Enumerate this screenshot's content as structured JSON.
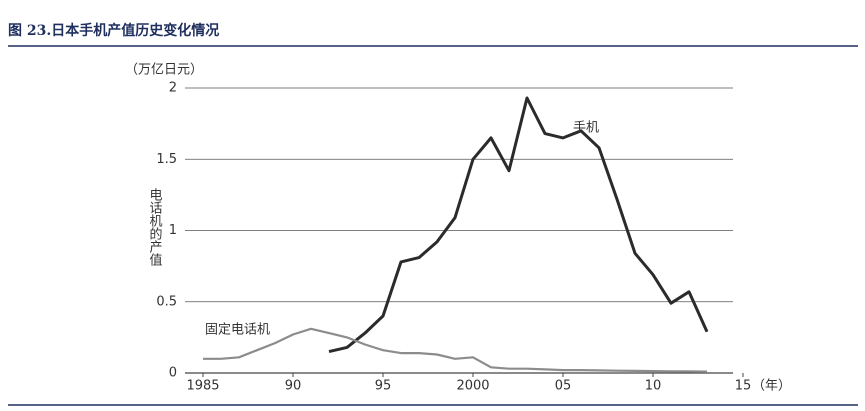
{
  "chart_data": {
    "type": "line",
    "title": "图 23.日本手机产值历史变化情况",
    "y_unit": "（万亿日元）",
    "y_axis_label": "电话机的产值",
    "x_unit": "（年）",
    "x": [
      1985,
      1986,
      1987,
      1988,
      1989,
      1990,
      1991,
      1992,
      1993,
      1994,
      1995,
      1996,
      1997,
      1998,
      1999,
      2000,
      2001,
      2002,
      2003,
      2004,
      2005,
      2006,
      2007,
      2008,
      2009,
      2010,
      2011,
      2012,
      2013
    ],
    "series": [
      {
        "name": "手机",
        "color": "#2b2b2b",
        "values": [
          null,
          null,
          null,
          null,
          null,
          null,
          null,
          0.15,
          0.18,
          0.28,
          0.4,
          0.78,
          0.81,
          0.92,
          1.09,
          1.5,
          1.65,
          1.42,
          1.93,
          1.68,
          1.65,
          1.7,
          1.58,
          1.22,
          0.84,
          0.69,
          0.49,
          0.57,
          0.29
        ]
      },
      {
        "name": "固定电话机",
        "color": "#8c8c8c",
        "values": [
          0.1,
          0.1,
          0.11,
          0.16,
          0.21,
          0.27,
          0.31,
          0.28,
          0.25,
          0.2,
          0.16,
          0.14,
          0.14,
          0.13,
          0.1,
          0.11,
          0.04,
          0.03,
          0.03,
          0.025,
          0.02,
          0.02,
          0.018,
          0.016,
          0.015,
          0.013,
          0.012,
          0.011,
          0.01
        ]
      }
    ],
    "xlim": [
      1984,
      2015
    ],
    "xticks": [
      1985,
      {
        "value": 1990,
        "label": "90"
      },
      {
        "value": 1995,
        "label": "95"
      },
      2000,
      {
        "value": 2005,
        "label": "05"
      },
      {
        "value": 2010,
        "label": "10"
      },
      {
        "value": 2015,
        "label": "15"
      }
    ],
    "ylim": [
      0,
      2
    ],
    "yticks": [
      0,
      0.5,
      1,
      1.5,
      2
    ],
    "grid": true
  }
}
